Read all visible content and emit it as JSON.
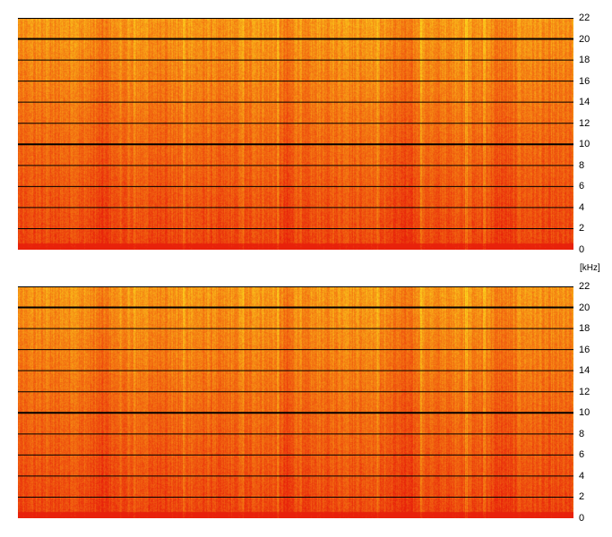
{
  "chart_data": [
    {
      "type": "heatmap",
      "channel": "top",
      "ylabel": "",
      "ylim": [
        0,
        22
      ],
      "y_ticks": [
        0,
        2,
        4,
        6,
        8,
        10,
        12,
        14,
        16,
        18,
        20,
        22
      ],
      "bold_gridlines": [
        10,
        20
      ],
      "grid": true,
      "colors": {
        "high": "#e8210b",
        "mid": "#f47a12",
        "low": "#fde41f",
        "grid": "#000000"
      }
    },
    {
      "type": "heatmap",
      "channel": "bottom",
      "ylabel": "[kHz]",
      "ylim": [
        0,
        22
      ],
      "y_ticks": [
        0,
        2,
        4,
        6,
        8,
        10,
        12,
        14,
        16,
        18,
        20,
        22
      ],
      "bold_gridlines": [
        10,
        20
      ],
      "grid": true,
      "colors": {
        "high": "#e8210b",
        "mid": "#f47a12",
        "low": "#fde41f",
        "grid": "#000000"
      }
    }
  ]
}
